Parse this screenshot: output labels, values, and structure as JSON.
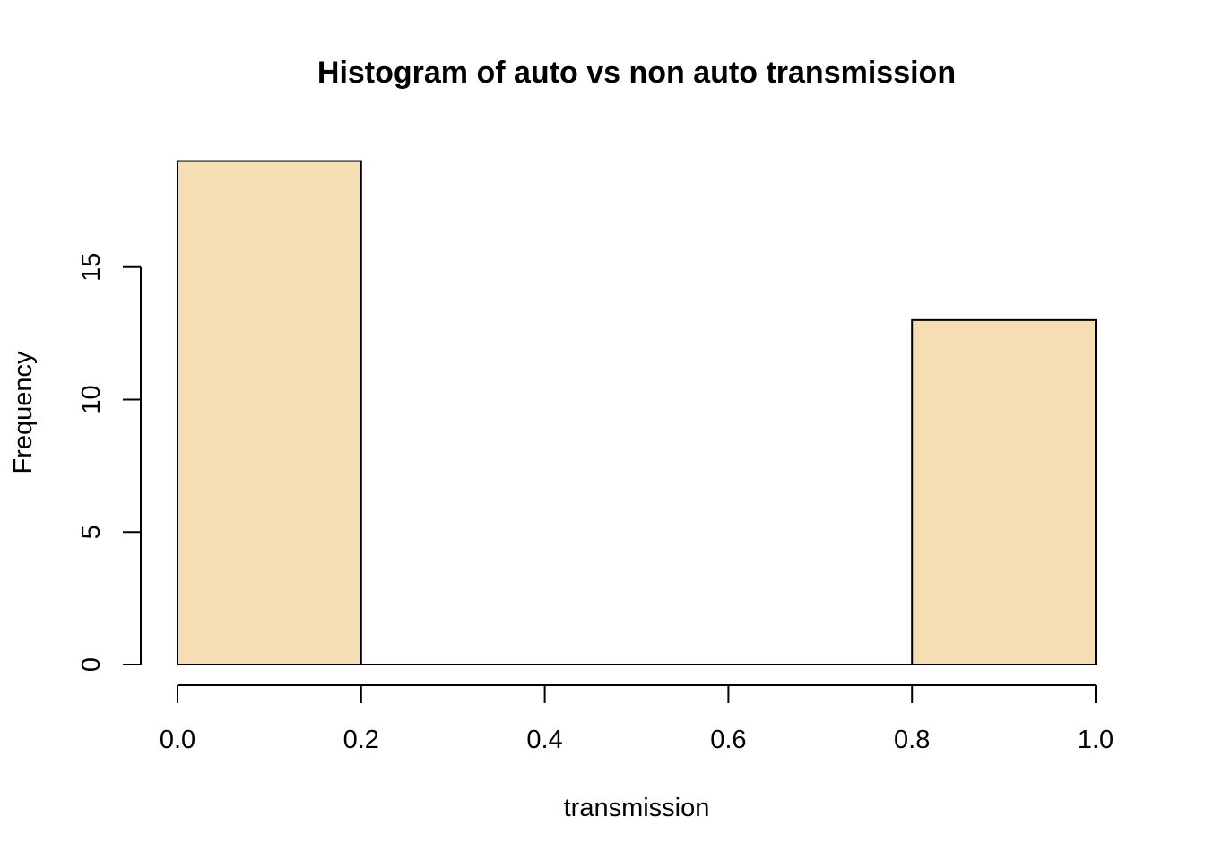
{
  "chart_data": {
    "type": "bar",
    "title": "Histogram of auto vs non auto transmission",
    "xlabel": "transmission",
    "ylabel": "Frequency",
    "bins": [
      {
        "from": 0.0,
        "to": 0.2,
        "count": 19
      },
      {
        "from": 0.2,
        "to": 0.4,
        "count": 0
      },
      {
        "from": 0.4,
        "to": 0.6,
        "count": 0
      },
      {
        "from": 0.6,
        "to": 0.8,
        "count": 0
      },
      {
        "from": 0.8,
        "to": 1.0,
        "count": 13
      }
    ],
    "xlim": [
      0,
      1
    ],
    "ylim": [
      0,
      19
    ],
    "x_ticks": [
      "0.0",
      "0.2",
      "0.4",
      "0.6",
      "0.8",
      "1.0"
    ],
    "y_ticks": [
      "0",
      "5",
      "10",
      "15"
    ],
    "bar_fill": "#f5deb3",
    "bar_stroke": "#000000",
    "grid": false,
    "legend": "none"
  }
}
